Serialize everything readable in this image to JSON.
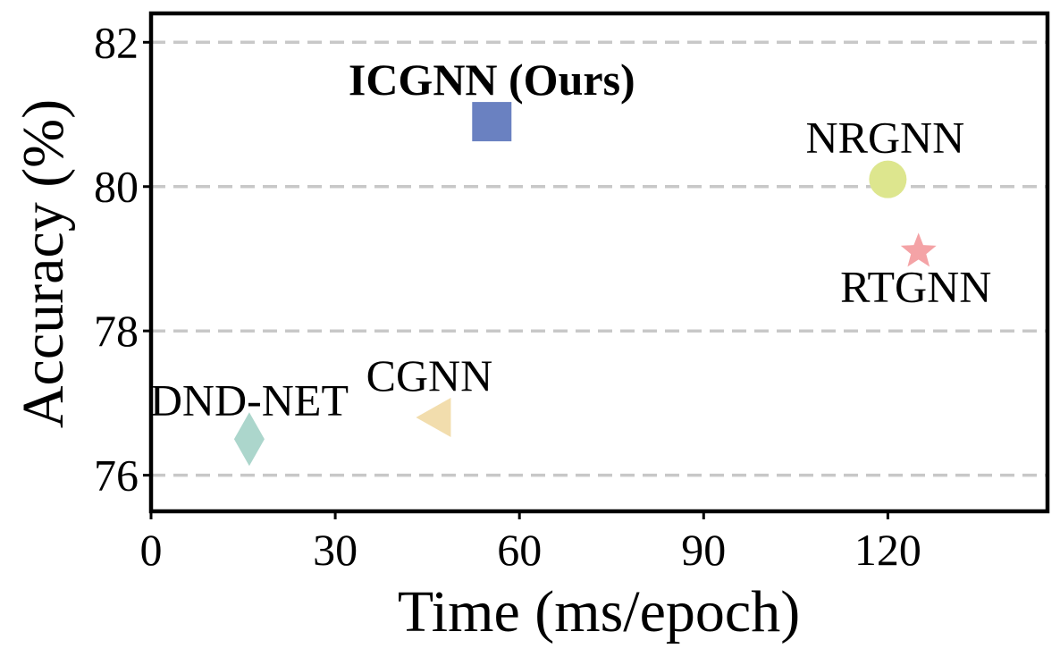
{
  "chart_data": {
    "type": "scatter",
    "title": "",
    "xlabel": "Time (ms/epoch)",
    "ylabel": "Accuracy (%)",
    "xlim": [
      0,
      146
    ],
    "ylim": [
      75.5,
      82.4
    ],
    "xticks": [
      0,
      30,
      60,
      90,
      120
    ],
    "yticks": [
      76,
      78,
      80,
      82
    ],
    "grid": "horizontal dashed",
    "points": [
      {
        "label": "ICGNN (Ours)",
        "x": 55.5,
        "y": 80.9,
        "marker": "square",
        "color": "#6a81c1",
        "bold": true
      },
      {
        "label": "NRGNN",
        "x": 120,
        "y": 80.1,
        "marker": "circle",
        "color": "#dde68e",
        "bold": false
      },
      {
        "label": "RTGNN",
        "x": 125,
        "y": 79.1,
        "marker": "star",
        "color": "#f4a3a6",
        "bold": false
      },
      {
        "label": "CGNN",
        "x": 46.5,
        "y": 76.8,
        "marker": "triangle-left",
        "color": "#f2ddad",
        "bold": false
      },
      {
        "label": "DND-NET",
        "x": 16,
        "y": 76.5,
        "marker": "diamond",
        "color": "#acd6cc",
        "bold": false
      }
    ]
  }
}
